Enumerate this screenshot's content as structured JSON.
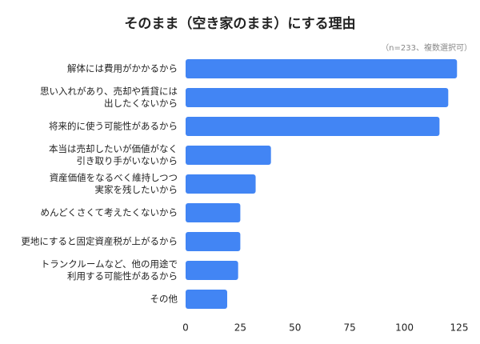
{
  "chart_data": {
    "type": "hbar",
    "title": "そのまま（空き家のまま）にする理由",
    "subtitle": "（n=233、複数選択可）",
    "categories": [
      "解体には費用がかかるから",
      "思い入れがあり、売却や賃貸には\n出したくないから",
      "将来的に使う可能性があるから",
      "本当は売却したいが価値がなく\n引き取り手がいないから",
      "資産価値をなるべく維持しつつ\n実家を残したいから",
      "めんどくさくて考えたくないから",
      "更地にすると固定資産税が上がるから",
      "トランクルームなど、他の用途で\n利用する可能性があるから",
      "その他"
    ],
    "values": [
      124,
      120,
      116,
      39,
      32,
      25,
      25,
      24,
      19
    ],
    "color": "#4285f4",
    "xlim": [
      0,
      125
    ],
    "xticks": [
      0,
      25,
      50,
      75,
      100,
      125
    ],
    "grid": false
  }
}
